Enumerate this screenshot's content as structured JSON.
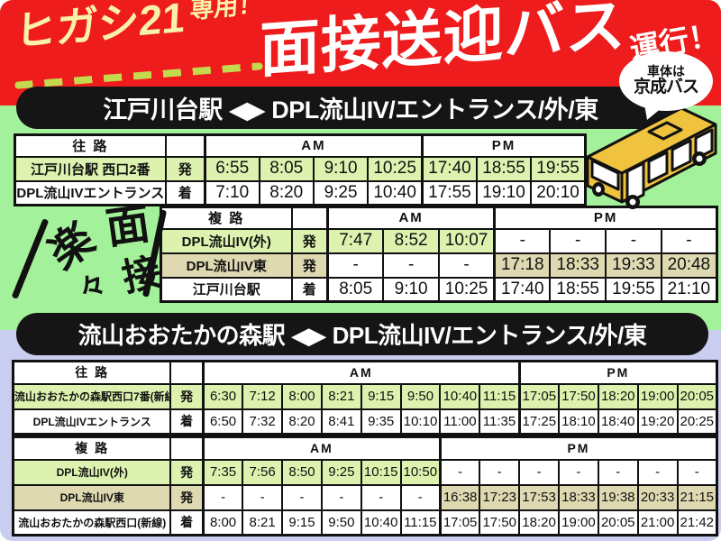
{
  "header": {
    "tagline_main": "ヒガシ21",
    "tagline_sub": "専用！",
    "title": "面接送迎バス",
    "suffix": "運行！",
    "bubble_line1": "車体は",
    "bubble_line2": "京成バス"
  },
  "decoration": {
    "char1": "楽",
    "char2": "々",
    "char3": "面",
    "char4": "接"
  },
  "colors": {
    "header_red": "#ee1c1c",
    "tagline_yellow": "#f9f1a8",
    "dash_green": "#c3d94e",
    "bg_green": "#a4f19b",
    "bg_lavender": "#c9cdf0",
    "cell_green": "#ddf2ae",
    "cell_tan": "#ded9b1",
    "banner_black": "#151515",
    "bus_yellow": "#efc33e"
  },
  "sections": [
    {
      "banner": "江戸川台駅 ◀▶ DPL流山IV/エントランス/外/東",
      "tables": [
        {
          "direction": "往 路",
          "am_label": "AM",
          "pm_label": "PM",
          "rows": [
            {
              "station": "江戸川台駅 西口2番",
              "mark": "発",
              "tone": "green",
              "am_times": [
                "6:55",
                "8:05",
                "9:10",
                "10:25"
              ],
              "pm_times": [
                "17:40",
                "18:55",
                "19:55"
              ]
            },
            {
              "station": "DPL流山IVエントランス",
              "mark": "着",
              "tone": "white",
              "am_times": [
                "7:10",
                "8:20",
                "9:25",
                "10:40"
              ],
              "pm_times": [
                "17:55",
                "19:10",
                "20:10"
              ]
            }
          ]
        },
        {
          "direction": "複 路",
          "am_label": "AM",
          "pm_label": "PM",
          "rows": [
            {
              "station": "DPL流山IV(外)",
              "mark": "発",
              "tone": "green",
              "am_times": [
                "7:47",
                "8:52",
                "10:07"
              ],
              "pm_times": [
                "-",
                "-",
                "-",
                "-"
              ]
            },
            {
              "station": "DPL流山IV東",
              "mark": "発",
              "tone": "tan",
              "am_times": [
                "-",
                "-",
                "-"
              ],
              "pm_times": [
                "17:18",
                "18:33",
                "19:33",
                "20:48"
              ]
            },
            {
              "station": "江戸川台駅",
              "mark": "着",
              "tone": "white",
              "am_times": [
                "8:05",
                "9:10",
                "10:25"
              ],
              "pm_times": [
                "17:40",
                "18:55",
                "19:55",
                "21:10"
              ]
            }
          ]
        }
      ]
    },
    {
      "banner": "流山おおたかの森駅 ◀▶ DPL流山IV/エントランス/外/東",
      "tables": [
        {
          "direction": "往 路",
          "am_label": "AM",
          "pm_label": "PM",
          "rows": [
            {
              "station": "流山おおたかの森駅西口7番(新線)",
              "mark": "発",
              "tone": "green",
              "am_times": [
                "6:30",
                "7:12",
                "8:00",
                "8:21",
                "9:15",
                "9:50",
                "10:40",
                "11:15"
              ],
              "pm_times": [
                "17:05",
                "17:50",
                "18:20",
                "19:00",
                "20:05"
              ]
            },
            {
              "station": "DPL流山IVエントランス",
              "mark": "着",
              "tone": "white",
              "am_times": [
                "6:50",
                "7:32",
                "8:20",
                "8:41",
                "9:35",
                "10:10",
                "11:00",
                "11:35"
              ],
              "pm_times": [
                "17:25",
                "18:10",
                "18:40",
                "19:20",
                "20:25"
              ]
            }
          ]
        },
        {
          "direction": "複 路",
          "am_label": "AM",
          "pm_label": "PM",
          "rows": [
            {
              "station": "DPL流山IV(外)",
              "mark": "発",
              "tone": "green",
              "am_times": [
                "7:35",
                "7:56",
                "8:50",
                "9:25",
                "10:15",
                "10:50"
              ],
              "pm_times": [
                "-",
                "-",
                "-",
                "-",
                "-",
                "-",
                "-"
              ]
            },
            {
              "station": "DPL流山IV東",
              "mark": "発",
              "tone": "tan",
              "am_times": [
                "-",
                "-",
                "-",
                "-",
                "-",
                "-"
              ],
              "pm_times": [
                "16:38",
                "17:23",
                "17:53",
                "18:33",
                "19:38",
                "20:33",
                "21:15"
              ]
            },
            {
              "station": "流山おおたかの森駅西口(新線)",
              "mark": "着",
              "tone": "white",
              "am_times": [
                "8:00",
                "8:21",
                "9:15",
                "9:50",
                "10:40",
                "11:15"
              ],
              "pm_times": [
                "17:05",
                "17:50",
                "18:20",
                "19:00",
                "20:05",
                "21:00",
                "21:42"
              ]
            }
          ]
        }
      ]
    }
  ]
}
